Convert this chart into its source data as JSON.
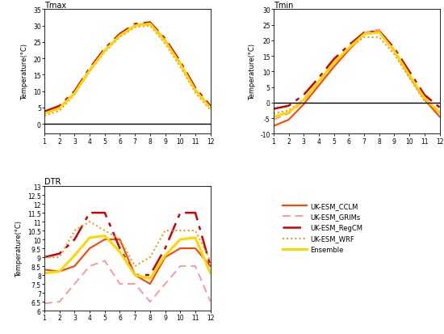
{
  "months": [
    1,
    2,
    3,
    4,
    5,
    6,
    7,
    8,
    9,
    10,
    11,
    12
  ],
  "tmax": {
    "CCLM": [
      3.5,
      5.0,
      9.5,
      16.5,
      22.5,
      27.0,
      30.0,
      31.0,
      25.5,
      18.5,
      10.5,
      5.0
    ],
    "GRIMs": [
      3.2,
      4.8,
      9.2,
      16.2,
      22.2,
      26.8,
      29.8,
      30.5,
      25.2,
      18.2,
      10.2,
      4.8
    ],
    "RegCM": [
      3.8,
      5.5,
      10.0,
      17.0,
      23.0,
      27.5,
      30.5,
      31.0,
      26.0,
      19.0,
      11.0,
      5.5
    ],
    "WRF": [
      2.5,
      4.0,
      9.0,
      16.0,
      22.0,
      26.5,
      29.5,
      30.0,
      24.5,
      17.5,
      9.5,
      4.3
    ],
    "Ensemble": [
      3.2,
      4.8,
      9.4,
      16.4,
      22.4,
      27.0,
      30.0,
      30.6,
      25.3,
      18.3,
      10.3,
      4.9
    ]
  },
  "tmin": {
    "CCLM": [
      -7.5,
      -5.5,
      -0.5,
      5.5,
      11.5,
      17.0,
      22.0,
      23.0,
      16.5,
      8.5,
      1.0,
      -4.5
    ],
    "GRIMs": [
      -5.5,
      -3.5,
      0.5,
      6.5,
      12.5,
      17.5,
      22.5,
      23.5,
      17.0,
      9.0,
      1.5,
      -3.5
    ],
    "RegCM": [
      -2.0,
      -1.0,
      2.5,
      8.0,
      14.0,
      18.5,
      22.5,
      23.0,
      17.5,
      10.0,
      2.5,
      -1.5
    ],
    "WRF": [
      -3.5,
      -2.5,
      1.0,
      7.0,
      13.0,
      17.5,
      21.0,
      21.0,
      15.5,
      8.0,
      0.5,
      -3.0
    ],
    "Ensemble": [
      -4.6,
      -3.1,
      0.9,
      6.8,
      12.8,
      17.6,
      22.0,
      22.6,
      16.6,
      8.9,
      1.4,
      -3.1
    ]
  },
  "dtr": {
    "CCLM": [
      8.3,
      8.2,
      8.5,
      9.5,
      10.0,
      10.0,
      8.0,
      7.5,
      9.0,
      9.5,
      9.5,
      8.5
    ],
    "GRIMs": [
      6.4,
      6.5,
      7.5,
      8.5,
      8.8,
      7.5,
      7.5,
      6.5,
      7.5,
      8.5,
      8.5,
      6.5
    ],
    "RegCM": [
      9.0,
      9.2,
      10.0,
      11.5,
      11.5,
      9.5,
      8.0,
      8.0,
      9.5,
      11.5,
      11.5,
      8.5
    ],
    "WRF": [
      9.0,
      9.0,
      10.5,
      11.0,
      10.5,
      10.0,
      8.5,
      9.0,
      10.5,
      10.5,
      10.5,
      8.8
    ],
    "Ensemble": [
      8.1,
      8.2,
      9.1,
      10.1,
      10.2,
      9.3,
      8.0,
      7.8,
      9.1,
      10.0,
      10.1,
      8.1
    ]
  },
  "colors": {
    "CCLM": "#FF4500",
    "GRIMs": "#FF9999",
    "RegCM": "#CC0000",
    "WRF": "#FF8C00",
    "Ensemble": "#FFD700"
  },
  "legend_colors": {
    "CCLM": "#FF4500",
    "GRIMs": "#FF9999",
    "RegCM": "#CC0000",
    "WRF": "#FF8C00",
    "Ensemble": "#FFD700"
  }
}
